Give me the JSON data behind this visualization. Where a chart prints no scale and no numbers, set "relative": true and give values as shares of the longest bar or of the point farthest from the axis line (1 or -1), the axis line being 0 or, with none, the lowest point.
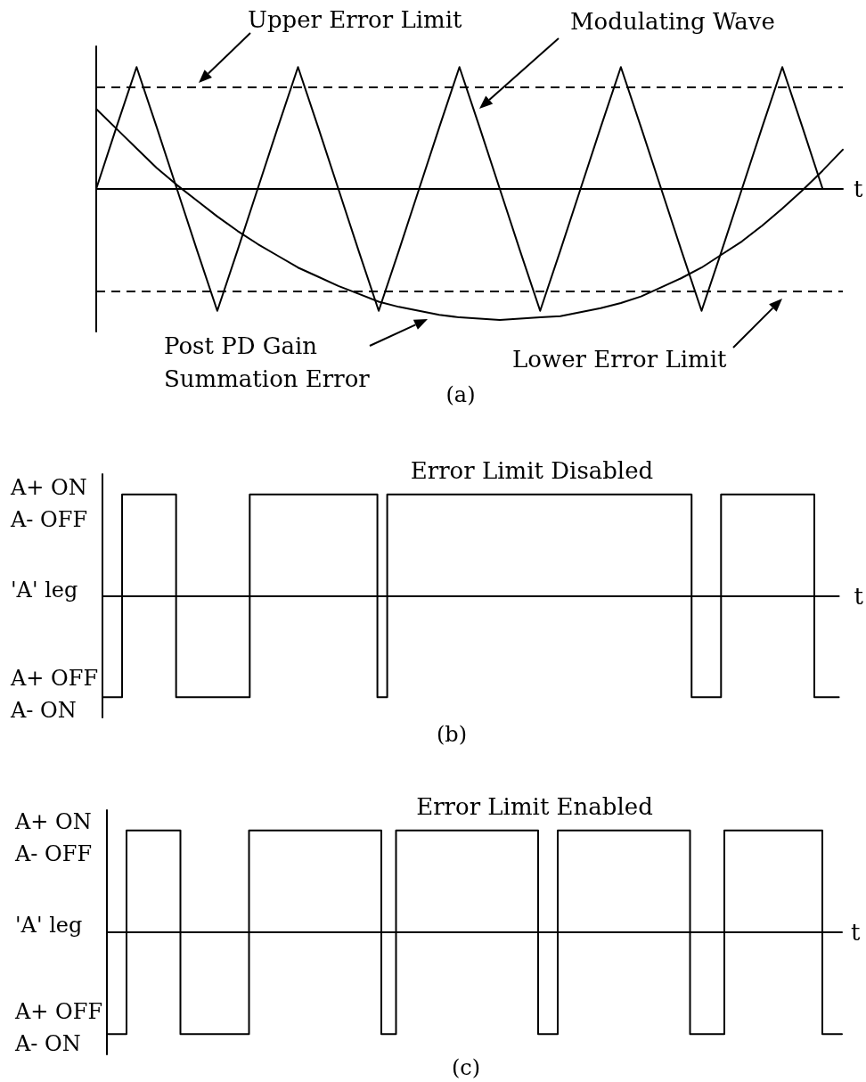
{
  "chart_data": [
    {
      "type": "line",
      "relative": true,
      "xlabel": "t",
      "categories": [
        null,
        null,
        null,
        null,
        null,
        null,
        null,
        null,
        null,
        null,
        null,
        null,
        null,
        null,
        null,
        null,
        null,
        null,
        null,
        null,
        null,
        null,
        null,
        null,
        null,
        null,
        null,
        null,
        null,
        null,
        null,
        null,
        null,
        null,
        null,
        null,
        null,
        null
      ],
      "series": [
        {
          "name": "Modulating Wave",
          "color": "#000000",
          "values": [
            0,
            0.47,
            0.93,
            0.47,
            0,
            -0.47,
            -0.93,
            -0.47,
            0,
            0.47,
            0.93,
            0.47,
            0,
            -0.47,
            -0.93,
            -0.47,
            0,
            0.47,
            0.93,
            0.47,
            0,
            -0.47,
            -0.93,
            -0.47,
            0,
            0.47,
            0.93,
            0.47,
            0,
            -0.47,
            -0.93,
            -0.47,
            0,
            0.47,
            0.93,
            0.47,
            0,
            null
          ]
        },
        {
          "name": "Post PD Gain Summation Error",
          "color": "#000000",
          "values": [
            0.61,
            0.46,
            0.31,
            0.16,
            0.03,
            -0.09,
            -0.21,
            -0.32,
            -0.42,
            -0.51,
            -0.6,
            -0.67,
            -0.74,
            -0.8,
            -0.86,
            -0.9,
            -0.93,
            -0.96,
            -0.98,
            -0.99,
            -1.0,
            -0.99,
            -0.98,
            -0.97,
            -0.94,
            -0.91,
            -0.87,
            -0.82,
            -0.75,
            -0.68,
            -0.6,
            -0.5,
            -0.4,
            -0.28,
            -0.15,
            -0.01,
            0.14,
            0.3
          ]
        }
      ],
      "ref_lines": [
        {
          "axis": "y",
          "value": 0.78,
          "label": "Upper Error Limit",
          "color": "#000000",
          "line_style": "dashed"
        },
        {
          "axis": "y",
          "value": -0.78,
          "label": "Lower Error Limit",
          "color": "#000000",
          "line_style": "dashed"
        }
      ],
      "annotations": [
        "(a)"
      ]
    },
    {
      "type": "step",
      "relative": true,
      "title": "Error Limit Disabled",
      "xlabel": "t",
      "categories": [
        null,
        null,
        null,
        null,
        null,
        null,
        null,
        null,
        null,
        null,
        null,
        null,
        null,
        null,
        null,
        null,
        null,
        null,
        null,
        null,
        null,
        null,
        null,
        null,
        null,
        null,
        null,
        null,
        null,
        null,
        null,
        null,
        null,
        null,
        null,
        null,
        null,
        null,
        null,
        null,
        null,
        null,
        null,
        null,
        null,
        null,
        null,
        null,
        null,
        null,
        null,
        null,
        null,
        null,
        null,
        null,
        null,
        null,
        null,
        null,
        null,
        null,
        null,
        null,
        null,
        null,
        null,
        null,
        null,
        null,
        null,
        null,
        null,
        null,
        null,
        null,
        null,
        null,
        null,
        null,
        null,
        null,
        null,
        null,
        null,
        null,
        null,
        null,
        null,
        null,
        null,
        null,
        null,
        null,
        null,
        null,
        null,
        null,
        null,
        null,
        null,
        null,
        null,
        null,
        null,
        null,
        null,
        null,
        null,
        null,
        null,
        null,
        null,
        null,
        null,
        null,
        null,
        null,
        null,
        null,
        null,
        null,
        null,
        null,
        null,
        null,
        null,
        null,
        null,
        null,
        null,
        null,
        null,
        null,
        null,
        null,
        null,
        null,
        null,
        null,
        null,
        null,
        null,
        null,
        null,
        null,
        null,
        null,
        null,
        null,
        null
      ],
      "values": [
        -1,
        -1,
        -1,
        -1,
        1,
        1,
        1,
        1,
        1,
        1,
        1,
        1,
        1,
        1,
        1,
        -1,
        -1,
        -1,
        -1,
        -1,
        -1,
        -1,
        -1,
        -1,
        -1,
        -1,
        -1,
        -1,
        -1,
        -1,
        1,
        1,
        1,
        1,
        1,
        1,
        1,
        1,
        1,
        1,
        1,
        1,
        1,
        1,
        1,
        1,
        1,
        1,
        1,
        1,
        1,
        1,
        1,
        1,
        1,
        1,
        -1,
        -1,
        1,
        1,
        1,
        1,
        1,
        1,
        1,
        1,
        1,
        1,
        1,
        1,
        1,
        1,
        1,
        1,
        1,
        1,
        1,
        1,
        1,
        1,
        1,
        1,
        1,
        1,
        1,
        1,
        1,
        1,
        1,
        1,
        1,
        1,
        1,
        1,
        1,
        1,
        1,
        1,
        1,
        1,
        1,
        1,
        1,
        1,
        1,
        1,
        1,
        1,
        1,
        1,
        1,
        1,
        1,
        1,
        1,
        1,
        1,
        1,
        1,
        1,
        -1,
        -1,
        -1,
        -1,
        -1,
        -1,
        1,
        1,
        1,
        1,
        1,
        1,
        1,
        1,
        1,
        1,
        1,
        1,
        1,
        1,
        1,
        1,
        1,
        1,
        1,
        -1,
        -1,
        -1,
        -1,
        -1,
        -1
      ],
      "color": "#000000",
      "annotations": [
        "A+ ON\nA- OFF",
        "'A' leg",
        "A+ OFF\nA- ON",
        "(b)"
      ]
    },
    {
      "type": "step",
      "relative": true,
      "title": "Error Limit Enabled",
      "xlabel": "t",
      "categories": [
        null,
        null,
        null,
        null,
        null,
        null,
        null,
        null,
        null,
        null,
        null,
        null,
        null,
        null,
        null,
        null,
        null,
        null,
        null,
        null,
        null,
        null,
        null,
        null,
        null,
        null,
        null,
        null,
        null,
        null,
        null,
        null,
        null,
        null,
        null,
        null,
        null,
        null,
        null,
        null,
        null,
        null,
        null,
        null,
        null,
        null,
        null,
        null,
        null,
        null,
        null,
        null,
        null,
        null,
        null,
        null,
        null,
        null,
        null,
        null,
        null,
        null,
        null,
        null,
        null,
        null,
        null,
        null,
        null,
        null,
        null,
        null,
        null,
        null,
        null,
        null,
        null,
        null,
        null,
        null,
        null,
        null,
        null,
        null,
        null,
        null,
        null,
        null,
        null,
        null,
        null,
        null,
        null,
        null,
        null,
        null,
        null,
        null,
        null,
        null,
        null,
        null,
        null,
        null,
        null,
        null,
        null,
        null,
        null,
        null,
        null,
        null,
        null,
        null,
        null,
        null,
        null,
        null,
        null,
        null,
        null,
        null,
        null,
        null,
        null,
        null,
        null,
        null,
        null,
        null,
        null,
        null,
        null,
        null,
        null,
        null,
        null,
        null,
        null,
        null,
        null,
        null,
        null,
        null,
        null,
        null,
        null,
        null,
        null,
        null,
        null
      ],
      "values": [
        -1,
        -1,
        -1,
        -1,
        1,
        1,
        1,
        1,
        1,
        1,
        1,
        1,
        1,
        1,
        1,
        -1,
        -1,
        -1,
        -1,
        -1,
        -1,
        -1,
        -1,
        -1,
        -1,
        -1,
        -1,
        -1,
        -1,
        1,
        1,
        1,
        1,
        1,
        1,
        1,
        1,
        1,
        1,
        1,
        1,
        1,
        1,
        1,
        1,
        1,
        1,
        1,
        1,
        1,
        1,
        1,
        1,
        1,
        1,
        1,
        -1,
        -1,
        -1,
        1,
        1,
        1,
        1,
        1,
        1,
        1,
        1,
        1,
        1,
        1,
        1,
        1,
        1,
        1,
        1,
        1,
        1,
        1,
        1,
        1,
        1,
        1,
        1,
        1,
        1,
        1,
        1,
        1,
        -1,
        -1,
        -1,
        -1,
        1,
        1,
        1,
        1,
        1,
        1,
        1,
        1,
        1,
        1,
        1,
        1,
        1,
        1,
        1,
        1,
        1,
        1,
        1,
        1,
        1,
        1,
        1,
        1,
        1,
        1,
        1,
        -1,
        -1,
        -1,
        -1,
        -1,
        -1,
        -1,
        1,
        1,
        1,
        1,
        1,
        1,
        1,
        1,
        1,
        1,
        1,
        1,
        1,
        1,
        1,
        1,
        1,
        1,
        1,
        1,
        -1,
        -1,
        -1,
        -1,
        -1
      ],
      "color": "#000000",
      "annotations": [
        "A+ ON\nA- OFF",
        "'A' leg",
        "A+ OFF\nA- ON",
        "(c)"
      ]
    }
  ]
}
